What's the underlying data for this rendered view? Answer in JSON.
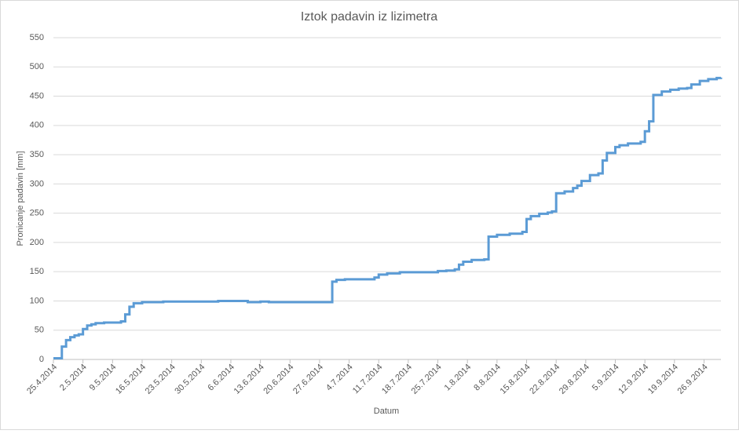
{
  "chart_data": {
    "type": "line",
    "title": "Iztok padavin iz lizimetra",
    "xlabel": "Datum",
    "ylabel": "Pronicanje padavin [mm]",
    "series": [
      {
        "name": "Pronicanje padavin",
        "color": "#5b9bd5",
        "x": [
          "25.4.2014",
          "27.4.2014",
          "28.4.2014",
          "29.4.2014",
          "30.4.2014",
          "1.5.2014",
          "2.5.2014",
          "3.5.2014",
          "4.5.2014",
          "5.5.2014",
          "7.5.2014",
          "11.5.2014",
          "12.5.2014",
          "13.5.2014",
          "14.5.2014",
          "16.5.2014",
          "21.5.2014",
          "3.6.2014",
          "10.6.2014",
          "13.6.2014",
          "15.6.2014",
          "30.6.2014",
          "1.7.2014",
          "3.7.2014",
          "10.7.2014",
          "11.7.2014",
          "13.7.2014",
          "16.7.2014",
          "25.7.2014",
          "27.7.2014",
          "29.7.2014",
          "30.7.2014",
          "31.7.2014",
          "2.8.2014",
          "5.8.2014",
          "6.8.2014",
          "8.8.2014",
          "11.8.2014",
          "14.8.2014",
          "15.8.2014",
          "16.8.2014",
          "18.8.2014",
          "20.8.2014",
          "21.8.2014",
          "22.8.2014",
          "24.8.2014",
          "26.8.2014",
          "27.8.2014",
          "28.8.2014",
          "30.8.2014",
          "1.9.2014",
          "2.9.2014",
          "3.9.2014",
          "5.9.2014",
          "6.9.2014",
          "8.9.2014",
          "11.9.2014",
          "12.9.2014",
          "13.9.2014",
          "14.9.2014",
          "16.9.2014",
          "18.9.2014",
          "20.9.2014",
          "22.9.2014",
          "23.9.2014",
          "25.9.2014",
          "27.9.2014",
          "29.9.2014",
          "30.9.2014"
        ],
        "values": [
          2,
          22,
          33,
          38,
          41,
          43,
          52,
          58,
          60,
          62,
          63,
          65,
          77,
          90,
          96,
          98,
          99,
          100,
          98,
          99,
          98,
          133,
          136,
          137,
          140,
          145,
          147,
          149,
          151,
          152,
          154,
          162,
          167,
          170,
          171,
          210,
          213,
          215,
          218,
          240,
          245,
          249,
          251,
          253,
          284,
          287,
          293,
          297,
          305,
          315,
          318,
          340,
          353,
          363,
          366,
          369,
          372,
          390,
          407,
          452,
          458,
          461,
          463,
          464,
          470,
          476,
          479,
          481,
          482
        ]
      }
    ],
    "xlim": [
      "25.4.2014",
      "30.9.2014"
    ],
    "xticks": [
      "25.4.2014",
      "2.5.2014",
      "9.5.2014",
      "16.5.2014",
      "23.5.2014",
      "30.5.2014",
      "6.6.2014",
      "13.6.2014",
      "20.6.2014",
      "27.6.2014",
      "4.7.2014",
      "11.7.2014",
      "18.7.2014",
      "25.7.2014",
      "1.8.2014",
      "8.8.2014",
      "15.8.2014",
      "22.8.2014",
      "29.8.2014",
      "5.9.2014",
      "12.9.2014",
      "19.9.2014",
      "26.9.2014"
    ],
    "ylim": [
      0,
      550
    ],
    "yticks": [
      0,
      50,
      100,
      150,
      200,
      250,
      300,
      350,
      400,
      450,
      500,
      550
    ],
    "grid": true
  }
}
